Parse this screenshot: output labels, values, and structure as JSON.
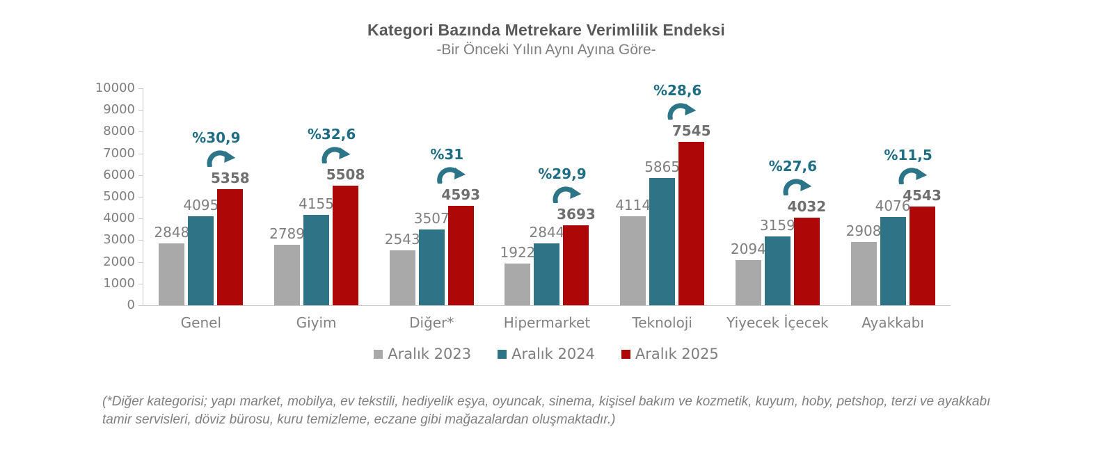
{
  "title": "Kategori Bazında Metrekare Verimlilik Endeksi",
  "subtitle": "-Bir Önceki Yılın Aynı Ayına Göre-",
  "footnote": "(*Diğer kategorisi; yapı market, mobilya, ev tekstili, hediyelik eşya, oyuncak, sinema, kişisel bakım ve kozmetik, kuyum, hoby, petshop, terzi ve ayakkabı tamir servisleri, döviz bürosu, kuru temizleme, eczane gibi mağazalardan oluşmaktadır.)",
  "colors": {
    "title": "#595959",
    "subtitle": "#7f7f7f",
    "axis_line": "#c9c9c9",
    "tick_label": "#7f7f7f",
    "value_label": "#7f7f7f",
    "value_label_bold": "#6f6f6f",
    "pct_label": "#1e6d84",
    "arrow": "#2c7487",
    "series_2023": "#a9a9a9",
    "series_2024": "#2f7386",
    "series_2025": "#ae0707"
  },
  "chart_data": {
    "type": "bar",
    "title": "Kategori Bazında Metrekare Verimlilik Endeksi",
    "subtitle": "-Bir Önceki Yılın Aynı Ayına Göre-",
    "categories": [
      "Genel",
      "Giyim",
      "Diğer*",
      "Hipermarket",
      "Teknoloji",
      "Yiyecek İçecek",
      "Ayakkabı"
    ],
    "series": [
      {
        "name": "Aralık 2023",
        "color": "#a9a9a9",
        "values": [
          2848,
          2789,
          2543,
          1922,
          4114,
          2094,
          2908
        ]
      },
      {
        "name": "Aralık 2024",
        "color": "#2f7386",
        "values": [
          4095,
          4155,
          3507,
          2844,
          5865,
          3159,
          4076
        ]
      },
      {
        "name": "Aralık 2025",
        "color": "#ae0707",
        "values": [
          5358,
          5508,
          4593,
          3693,
          7545,
          4032,
          4543
        ]
      }
    ],
    "pct_change_labels": [
      "%30,9",
      "%32,6",
      "%31",
      "%29,9",
      "%28,6",
      "%27,6",
      "%11,5"
    ],
    "xlabel": "",
    "ylabel": "",
    "ylim": [
      0,
      10000
    ],
    "ytick_step": 1000,
    "ytick_labels": [
      "0",
      "1000",
      "2000",
      "3000",
      "4000",
      "5000",
      "6000",
      "7000",
      "8000",
      "9000",
      "10000"
    ],
    "grid": false,
    "legend_position": "bottom"
  }
}
